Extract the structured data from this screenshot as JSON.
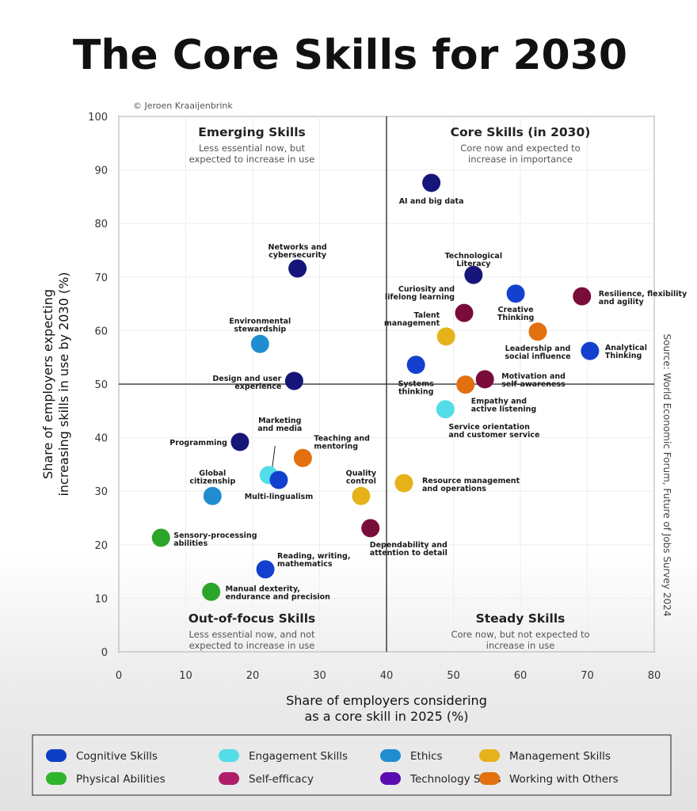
{
  "chart_data": {
    "type": "scatter",
    "title": "The Core Skills for 2030",
    "credit": "© Jeroen Kraaijenbrink",
    "source": "Source: World Economic Forum, Future of Jobs Survey 2024",
    "xlabel": [
      "Share of employers considering",
      "as a core skill in 2025 (%)"
    ],
    "ylabel": [
      "Share of employers expecting",
      "increasing skills in use by 2030 (%)"
    ],
    "xlim": [
      0,
      80
    ],
    "ylim": [
      0,
      100
    ],
    "xticks": [
      0,
      10,
      20,
      30,
      40,
      50,
      60,
      70,
      80
    ],
    "yticks": [
      0,
      10,
      20,
      30,
      40,
      50,
      60,
      70,
      80,
      90,
      100
    ],
    "dividers": {
      "x": 40,
      "y": 50
    },
    "quadrants": [
      {
        "title": "Emerging Skills",
        "subtitle": [
          "Less essential now, but",
          "expected to increase in use"
        ],
        "position": "top-left"
      },
      {
        "title": "Core Skills (in 2030)",
        "subtitle": [
          "Core now and expected to",
          "increase in importance"
        ],
        "position": "top-right"
      },
      {
        "title": "Out-of-focus Skills",
        "subtitle": [
          "Less essential now, and not",
          "expected to increase in use"
        ],
        "position": "bottom-left"
      },
      {
        "title": "Steady Skills",
        "subtitle": [
          "Core now, but not expected to",
          "increase in use"
        ],
        "position": "bottom-right"
      }
    ],
    "categories": [
      {
        "name": "Cognitive Skills",
        "color": "#1340cf"
      },
      {
        "name": "Engagement Skills",
        "color": "#52dde8"
      },
      {
        "name": "Ethics",
        "color": "#1f8ed0"
      },
      {
        "name": "Management Skills",
        "color": "#e6b21a"
      },
      {
        "name": "Physical Abilities",
        "color": "#2aa52a"
      },
      {
        "name": "Self-efficacy",
        "color": "#7a0c3a"
      },
      {
        "name": "Technology Skills",
        "color": "#16167a"
      },
      {
        "name": "Working with Others",
        "color": "#e2700f"
      }
    ],
    "legend_colors": [
      "#0d3fc4",
      "#52dde8",
      "#1f8ed0",
      "#e6b21a",
      "#2fb52a",
      "#b01d6a",
      "#5a0cb0",
      "#e2700f"
    ],
    "legend_position": "bottom",
    "grid": false,
    "points": [
      {
        "label": [
          "AI and big data"
        ],
        "category": "Technology Skills",
        "x": 46.7,
        "y": 87.6
      },
      {
        "label": [
          "Networks and",
          "cybersecurity"
        ],
        "category": "Technology Skills",
        "x": 26.7,
        "y": 71.6
      },
      {
        "label": [
          "Technological",
          "Literacy"
        ],
        "category": "Technology Skills",
        "x": 53.0,
        "y": 70.4
      },
      {
        "label": [
          "Creative",
          "Thinking"
        ],
        "category": "Cognitive Skills",
        "x": 59.3,
        "y": 66.9
      },
      {
        "label": [
          "Resilience, flexibility",
          "and agility"
        ],
        "category": "Self-efficacy",
        "x": 69.2,
        "y": 66.4
      },
      {
        "label": [
          "Curiosity and",
          "lifelong learning"
        ],
        "category": "Self-efficacy",
        "x": 51.6,
        "y": 63.3
      },
      {
        "label": [
          "Leadership and",
          "social influence"
        ],
        "category": "Working with Others",
        "x": 62.6,
        "y": 59.8
      },
      {
        "label": [
          "Talent",
          "management"
        ],
        "category": "Management Skills",
        "x": 48.9,
        "y": 58.9
      },
      {
        "label": [
          "Environmental",
          "stewardship"
        ],
        "category": "Ethics",
        "x": 21.1,
        "y": 57.5
      },
      {
        "label": [
          "Analytical",
          "Thinking"
        ],
        "category": "Cognitive Skills",
        "x": 70.4,
        "y": 56.2
      },
      {
        "label": [
          "Systems",
          "thinking"
        ],
        "category": "Cognitive Skills",
        "x": 44.4,
        "y": 53.6
      },
      {
        "label": [
          "Design and user",
          "experience"
        ],
        "category": "Technology Skills",
        "x": 26.2,
        "y": 50.6
      },
      {
        "label": [
          "Motivation and",
          "self-awareness"
        ],
        "category": "Self-efficacy",
        "x": 54.7,
        "y": 50.9
      },
      {
        "label": [
          "Empathy and",
          "active listening"
        ],
        "category": "Working with Others",
        "x": 51.8,
        "y": 49.9
      },
      {
        "label": [
          "Service orientation",
          "and customer service"
        ],
        "category": "Engagement Skills",
        "x": 48.8,
        "y": 45.3
      },
      {
        "label": [
          "Programming"
        ],
        "category": "Technology Skills",
        "x": 18.1,
        "y": 39.2
      },
      {
        "label": [
          "Teaching and",
          "mentoring"
        ],
        "category": "Working with Others",
        "x": 27.5,
        "y": 36.2
      },
      {
        "label": [
          "Marketing",
          "and media"
        ],
        "category": "Engagement Skills",
        "x": 22.4,
        "y": 33.0
      },
      {
        "label": [
          "Multi-lingualism"
        ],
        "category": "Cognitive Skills",
        "x": 23.9,
        "y": 32.1
      },
      {
        "label": [
          "Resource management",
          "and operations"
        ],
        "category": "Management Skills",
        "x": 42.6,
        "y": 31.5
      },
      {
        "label": [
          "Global",
          "citizenship"
        ],
        "category": "Ethics",
        "x": 14.0,
        "y": 29.1
      },
      {
        "label": [
          "Quality",
          "control"
        ],
        "category": "Management Skills",
        "x": 36.2,
        "y": 29.1
      },
      {
        "label": [
          "Dependability and",
          "attention to detail"
        ],
        "category": "Self-efficacy",
        "x": 37.6,
        "y": 23.1
      },
      {
        "label": [
          "Sensory-processing",
          "abilities"
        ],
        "category": "Physical Abilities",
        "x": 6.3,
        "y": 21.3
      },
      {
        "label": [
          "Reading, writing,",
          "mathematics"
        ],
        "category": "Cognitive Skills",
        "x": 21.9,
        "y": 15.4
      },
      {
        "label": [
          "Manual dexterity,",
          "endurance and precision"
        ],
        "category": "Physical Abilities",
        "x": 13.8,
        "y": 11.2
      }
    ]
  }
}
